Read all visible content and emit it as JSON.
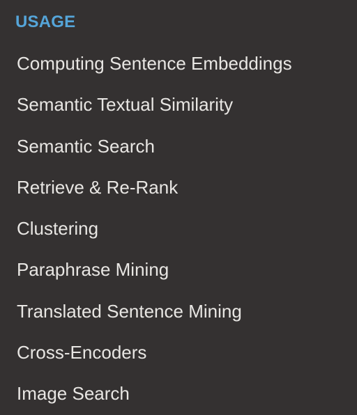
{
  "sidebar": {
    "caption": "USAGE",
    "items": [
      {
        "label": "Computing Sentence Embeddings"
      },
      {
        "label": "Semantic Textual Similarity"
      },
      {
        "label": "Semantic Search"
      },
      {
        "label": "Retrieve & Re-Rank"
      },
      {
        "label": "Clustering"
      },
      {
        "label": "Paraphrase Mining"
      },
      {
        "label": "Translated Sentence Mining"
      },
      {
        "label": "Cross-Encoders"
      },
      {
        "label": "Image Search"
      }
    ]
  },
  "colors": {
    "background": "#343131",
    "caption": "#55a5d9",
    "link": "#e8e6e3"
  }
}
